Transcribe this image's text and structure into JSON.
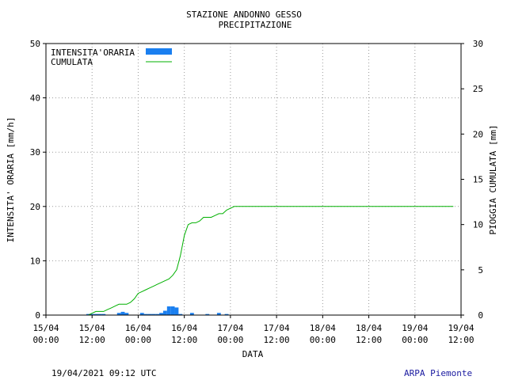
{
  "chart_data": {
    "type": "bar",
    "title": "STAZIONE ANDONNO GESSO",
    "subtitle": "PRECIPITAZIONE",
    "xlabel": "DATA",
    "ylabel_left": "INTENSITA' ORARIA [mm/h]",
    "ylabel_right": "PIOGGIA CUMULATA [mm]",
    "ylim_left": [
      0,
      50
    ],
    "ylim_right": [
      0,
      30
    ],
    "left_ticks": [
      "0",
      "10",
      "20",
      "30",
      "40",
      "50"
    ],
    "right_ticks": [
      "0",
      "5",
      "10",
      "15",
      "20",
      "25",
      "30"
    ],
    "x_tick_labels": [
      [
        "15/04",
        "00:00"
      ],
      [
        "15/04",
        "12:00"
      ],
      [
        "16/04",
        "00:00"
      ],
      [
        "16/04",
        "12:00"
      ],
      [
        "17/04",
        "00:00"
      ],
      [
        "17/04",
        "12:00"
      ],
      [
        "18/04",
        "00:00"
      ],
      [
        "18/04",
        "12:00"
      ],
      [
        "19/04",
        "00:00"
      ],
      [
        "19/04",
        "12:00"
      ]
    ],
    "grid": true,
    "legend_position": "top-left",
    "series": [
      {
        "name": "INTENSITA'ORARIA",
        "color": "#1a7ff0",
        "bars": [
          {
            "x": "15/04 11:00",
            "value": 0.2
          },
          {
            "x": "15/04 12:00",
            "value": 0.2
          },
          {
            "x": "15/04 13:00",
            "value": 0.2
          },
          {
            "x": "15/04 14:00",
            "value": 0.2
          },
          {
            "x": "15/04 15:00",
            "value": 0.2
          },
          {
            "x": "15/04 19:00",
            "value": 0.4
          },
          {
            "x": "15/04 20:00",
            "value": 0.6
          },
          {
            "x": "15/04 21:00",
            "value": 0.4
          },
          {
            "x": "16/04 01:00",
            "value": 0.4
          },
          {
            "x": "16/04 02:00",
            "value": 0.2
          },
          {
            "x": "16/04 03:00",
            "value": 0.2
          },
          {
            "x": "16/04 04:00",
            "value": 0.2
          },
          {
            "x": "16/04 05:00",
            "value": 0.2
          },
          {
            "x": "16/04 06:00",
            "value": 0.4
          },
          {
            "x": "16/04 07:00",
            "value": 0.8
          },
          {
            "x": "16/04 08:00",
            "value": 1.6
          },
          {
            "x": "16/04 09:00",
            "value": 1.6
          },
          {
            "x": "16/04 10:00",
            "value": 1.4
          },
          {
            "x": "16/04 11:00",
            "value": 0.2
          },
          {
            "x": "16/04 14:00",
            "value": 0.4
          },
          {
            "x": "16/04 18:00",
            "value": 0.2
          },
          {
            "x": "16/04 21:00",
            "value": 0.4
          },
          {
            "x": "16/04 23:00",
            "value": 0.2
          }
        ]
      },
      {
        "name": "CUMULATA",
        "color": "#00b000",
        "points": [
          [
            "15/04 11:00",
            0
          ],
          [
            "15/04 12:00",
            0.2
          ],
          [
            "15/04 13:00",
            0.4
          ],
          [
            "15/04 14:00",
            0.4
          ],
          [
            "15/04 15:00",
            0.4
          ],
          [
            "15/04 16:00",
            0.6
          ],
          [
            "15/04 17:00",
            0.8
          ],
          [
            "15/04 18:00",
            1.0
          ],
          [
            "15/04 19:00",
            1.2
          ],
          [
            "15/04 20:00",
            1.2
          ],
          [
            "15/04 21:00",
            1.2
          ],
          [
            "15/04 22:00",
            1.4
          ],
          [
            "15/04 23:00",
            1.8
          ],
          [
            "16/04 00:00",
            2.4
          ],
          [
            "16/04 01:00",
            2.6
          ],
          [
            "16/04 02:00",
            2.8
          ],
          [
            "16/04 03:00",
            3.0
          ],
          [
            "16/04 04:00",
            3.2
          ],
          [
            "16/04 05:00",
            3.4
          ],
          [
            "16/04 06:00",
            3.6
          ],
          [
            "16/04 07:00",
            3.8
          ],
          [
            "16/04 08:00",
            4.0
          ],
          [
            "16/04 09:00",
            4.4
          ],
          [
            "16/04 10:00",
            5.0
          ],
          [
            "16/04 11:00",
            6.6
          ],
          [
            "16/04 12:00",
            8.8
          ],
          [
            "16/04 13:00",
            10.0
          ],
          [
            "16/04 14:00",
            10.2
          ],
          [
            "16/04 15:00",
            10.2
          ],
          [
            "16/04 16:00",
            10.4
          ],
          [
            "16/04 17:00",
            10.8
          ],
          [
            "16/04 18:00",
            10.8
          ],
          [
            "16/04 19:00",
            10.8
          ],
          [
            "16/04 20:00",
            11.0
          ],
          [
            "16/04 21:00",
            11.2
          ],
          [
            "16/04 22:00",
            11.2
          ],
          [
            "16/04 23:00",
            11.6
          ],
          [
            "17/04 00:00",
            11.8
          ],
          [
            "17/04 01:00",
            12.0
          ],
          [
            "19/04 10:00",
            12.0
          ]
        ]
      }
    ]
  },
  "footer": {
    "timestamp": "19/04/2021 09:12 UTC",
    "credit": "ARPA Piemonte",
    "credit_color": "#1a1aa0"
  }
}
